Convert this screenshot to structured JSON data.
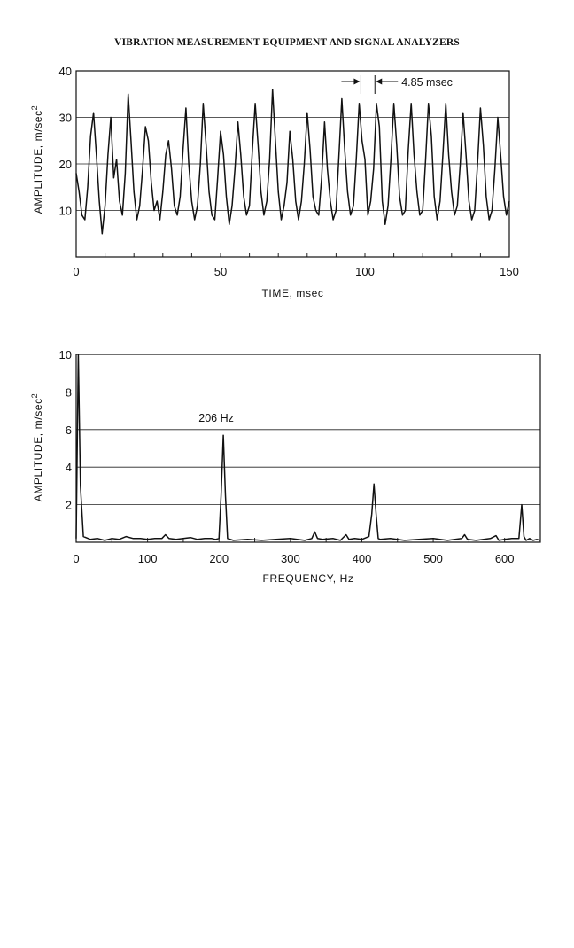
{
  "header": {
    "title": "VIBRATION MEASUREMENT EQUIPMENT AND SIGNAL ANALYZERS"
  },
  "chart_data": [
    {
      "type": "line",
      "xlabel": "TIME, msec",
      "ylabel": "AMPLITUDE, m/sec2",
      "xlim": [
        0,
        150
      ],
      "ylim": [
        0,
        40
      ],
      "x_ticks": [
        "0",
        "50",
        "100",
        "150"
      ],
      "y_ticks": [
        "10",
        "20",
        "30",
        "40"
      ],
      "grid": "horizontal",
      "annotation": "4.85 msec",
      "series": [
        {
          "x": [
            0,
            1,
            2,
            3,
            4,
            5,
            6,
            7,
            8,
            9,
            10,
            11,
            12,
            13,
            14,
            15,
            16,
            17,
            18,
            19,
            20,
            21,
            22,
            23,
            24,
            25,
            26,
            27,
            28,
            29,
            30,
            31,
            32,
            33,
            34,
            35,
            36,
            37,
            38,
            39,
            40,
            41,
            42,
            43,
            44,
            45,
            46,
            47,
            48,
            49,
            50,
            51,
            52,
            53,
            54,
            55,
            56,
            57,
            58,
            59,
            60,
            61,
            62,
            63,
            64,
            65,
            66,
            67,
            68,
            69,
            70,
            71,
            72,
            73,
            74,
            75,
            76,
            77,
            78,
            79,
            80,
            81,
            82,
            83,
            84,
            85,
            86,
            87,
            88,
            89,
            90,
            91,
            92,
            93,
            94,
            95,
            96,
            97,
            98,
            99,
            100,
            101,
            102,
            103,
            104,
            105,
            106,
            107,
            108,
            109,
            110,
            111,
            112,
            113,
            114,
            115,
            116,
            117,
            118,
            119,
            120,
            121,
            122,
            123,
            124,
            125,
            126,
            127,
            128,
            129,
            130,
            131,
            132,
            133,
            134,
            135,
            136,
            137,
            138,
            139,
            140,
            141,
            142,
            143,
            144,
            145,
            146,
            147,
            148,
            149,
            150
          ],
          "y": [
            18,
            14,
            9,
            8,
            15,
            26,
            31,
            22,
            12,
            5,
            11,
            22,
            30,
            17,
            21,
            12,
            9,
            18,
            35,
            25,
            14,
            8,
            11,
            19,
            28,
            25,
            16,
            10,
            12,
            8,
            14,
            22,
            25,
            19,
            11,
            9,
            13,
            23,
            32,
            20,
            12,
            8,
            11,
            20,
            33,
            24,
            14,
            9,
            8,
            17,
            27,
            22,
            13,
            7,
            11,
            19,
            29,
            22,
            13,
            9,
            11,
            23,
            33,
            24,
            14,
            9,
            12,
            21,
            36,
            25,
            14,
            8,
            11,
            16,
            27,
            21,
            12,
            8,
            12,
            20,
            31,
            23,
            13,
            10,
            9,
            17,
            29,
            19,
            12,
            8,
            10,
            22,
            34,
            23,
            14,
            9,
            11,
            21,
            33,
            25,
            21,
            9,
            12,
            19,
            33,
            28,
            12,
            7,
            11,
            21,
            33,
            24,
            13,
            9,
            10,
            23,
            33,
            22,
            14,
            9,
            10,
            21,
            33,
            26,
            13,
            8,
            12,
            22,
            33,
            22,
            14,
            9,
            11,
            20,
            31,
            22,
            12,
            8,
            10,
            20,
            32,
            24,
            13,
            8,
            10,
            19,
            30,
            22,
            13,
            9,
            12
          ]
        }
      ]
    },
    {
      "type": "line",
      "xlabel": "FREQUENCY, Hz",
      "ylabel": "AMPLITUDE, m/sec2",
      "xlim": [
        0,
        650
      ],
      "ylim": [
        0,
        10
      ],
      "x_ticks": [
        "0",
        "100",
        "200",
        "300",
        "400",
        "500",
        "600"
      ],
      "y_ticks": [
        "2",
        "4",
        "6",
        "8",
        "10"
      ],
      "grid": "horizontal",
      "annotation": "206 Hz",
      "series": [
        {
          "x": [
            0,
            3,
            6,
            10,
            20,
            30,
            40,
            50,
            60,
            70,
            80,
            90,
            100,
            110,
            120,
            125,
            130,
            140,
            150,
            160,
            170,
            180,
            190,
            195,
            200,
            203,
            206,
            209,
            212,
            220,
            240,
            260,
            280,
            300,
            320,
            330,
            334,
            338,
            345,
            360,
            370,
            378,
            382,
            390,
            400,
            410,
            414,
            417,
            420,
            423,
            426,
            440,
            460,
            480,
            500,
            520,
            540,
            544,
            548,
            560,
            580,
            588,
            592,
            600,
            610,
            620,
            624,
            627,
            630,
            635,
            640,
            645,
            650
          ],
          "x_note": "Hz",
          "y": [
            0.2,
            10,
            3,
            0.3,
            0.15,
            0.2,
            0.1,
            0.2,
            0.15,
            0.3,
            0.2,
            0.2,
            0.15,
            0.2,
            0.2,
            0.4,
            0.2,
            0.15,
            0.2,
            0.25,
            0.15,
            0.2,
            0.2,
            0.15,
            0.2,
            2.5,
            5.7,
            2.5,
            0.2,
            0.1,
            0.15,
            0.1,
            0.15,
            0.2,
            0.1,
            0.2,
            0.55,
            0.2,
            0.15,
            0.2,
            0.1,
            0.4,
            0.15,
            0.2,
            0.15,
            0.3,
            1.5,
            3.1,
            1.5,
            0.2,
            0.15,
            0.2,
            0.1,
            0.15,
            0.2,
            0.1,
            0.2,
            0.4,
            0.15,
            0.1,
            0.2,
            0.35,
            0.1,
            0.15,
            0.2,
            0.2,
            2.0,
            0.3,
            0.1,
            0.2,
            0.1,
            0.15,
            0.1
          ]
        }
      ]
    }
  ]
}
